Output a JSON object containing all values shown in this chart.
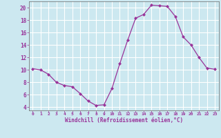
{
  "x": [
    0,
    1,
    2,
    3,
    4,
    5,
    6,
    7,
    8,
    9,
    10,
    11,
    12,
    13,
    14,
    15,
    16,
    17,
    18,
    19,
    20,
    21,
    22,
    23
  ],
  "y": [
    10.2,
    10.0,
    9.3,
    8.0,
    7.5,
    7.3,
    6.2,
    5.0,
    4.3,
    4.4,
    7.0,
    11.0,
    14.8,
    18.3,
    18.9,
    20.4,
    20.3,
    20.2,
    18.6,
    15.3,
    14.0,
    12.0,
    10.3,
    10.1
  ],
  "line_color": "#993399",
  "marker": "D",
  "marker_size": 2,
  "bg_color": "#cce8f0",
  "grid_color": "#ffffff",
  "xlabel": "Windchill (Refroidissement éolien,°C)",
  "xlabel_color": "#993399",
  "tick_color": "#993399",
  "ylim": [
    3.5,
    21.0
  ],
  "xlim": [
    -0.5,
    23.5
  ],
  "yticks": [
    4,
    6,
    8,
    10,
    12,
    14,
    16,
    18,
    20
  ],
  "xticks": [
    0,
    1,
    2,
    3,
    4,
    5,
    6,
    7,
    8,
    9,
    10,
    11,
    12,
    13,
    14,
    15,
    16,
    17,
    18,
    19,
    20,
    21,
    22,
    23
  ]
}
